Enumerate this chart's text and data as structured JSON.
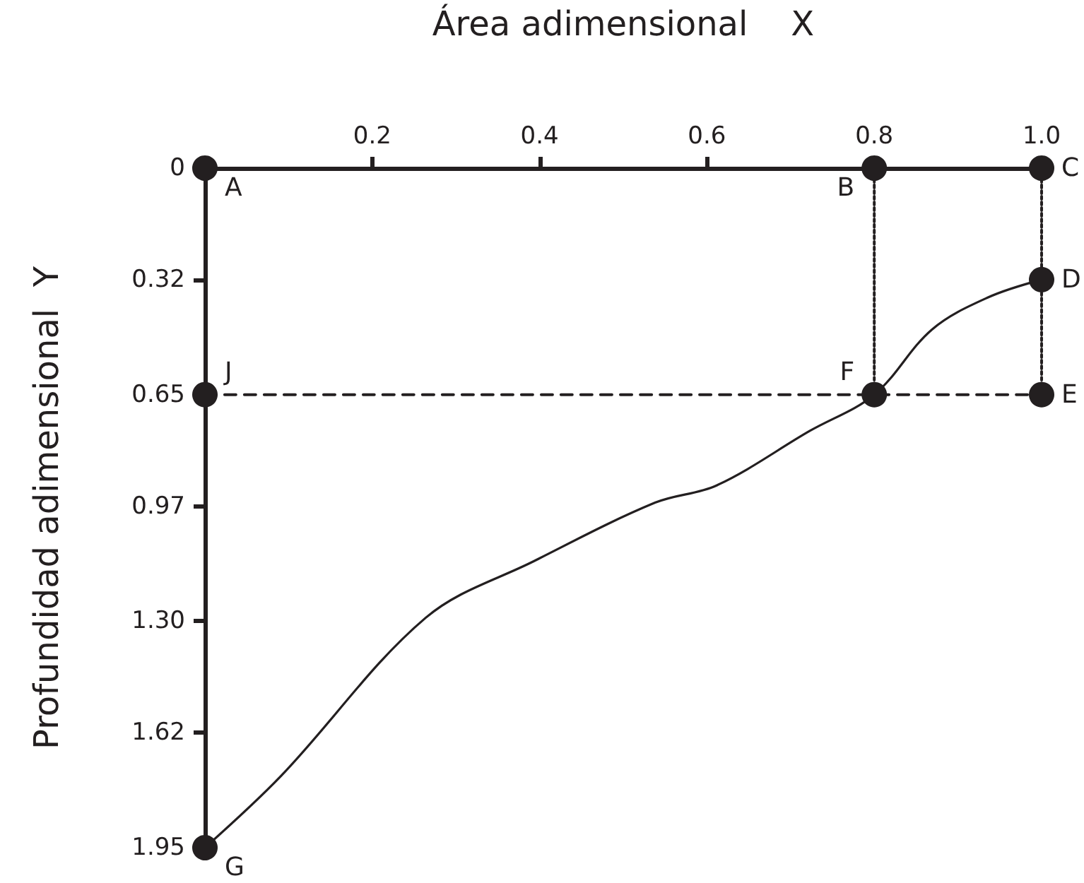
{
  "chart_data": {
    "type": "line",
    "xlabel": "Área adimensional    X",
    "ylabel": "Profundidad adimensional  Y",
    "xlim": [
      0,
      1
    ],
    "xticks": [
      0.2,
      0.4,
      0.6,
      0.8,
      {
        "value": 1,
        "label": "1.0"
      }
    ],
    "ylim": [
      1.95,
      0
    ],
    "yticks": [
      0,
      0.32,
      0.65,
      0.97,
      {
        "value": 1.3,
        "label": "1.30"
      },
      1.62,
      1.95
    ],
    "grid": false,
    "series": [
      {
        "x": [
          0,
          0.091,
          0.264,
          0.393,
          0.538,
          0.612,
          0.723,
          0.8,
          0.869,
          0.936,
          1
        ],
        "values": [
          1.95,
          1.744,
          1.29,
          1.128,
          0.96,
          0.91,
          0.754,
          0.65,
          0.463,
          0.371,
          0.32
        ],
        "color": "#231f20",
        "line_style": "solid",
        "marker": "none"
      },
      {
        "x": [
          0.8,
          0.8
        ],
        "values": [
          0,
          0.65
        ],
        "color": "#231f20",
        "line_style": "dotted",
        "marker": "none"
      },
      {
        "x": [
          1,
          1
        ],
        "values": [
          0,
          0.65
        ],
        "color": "#231f20",
        "line_style": "dotted",
        "marker": "none"
      },
      {
        "x": [
          0,
          1
        ],
        "values": [
          0.65,
          0.65
        ],
        "color": "#231f20",
        "line_style": "dashed",
        "marker": "none"
      },
      {
        "type": "scatter",
        "x": [
          0,
          0.8,
          1,
          1,
          1,
          0.8,
          0,
          0
        ],
        "values": [
          0,
          0,
          0,
          0.32,
          0.65,
          0.65,
          1.95,
          0.65
        ],
        "color": "#231f20",
        "marker": "circle"
      }
    ],
    "annotations": [
      {
        "text": "A",
        "x": 0,
        "y": 0
      },
      {
        "text": "B",
        "x": 0.8,
        "y": 0
      },
      {
        "text": "C",
        "x": 1,
        "y": 0
      },
      {
        "text": "D",
        "x": 1,
        "y": 0.32
      },
      {
        "text": "E",
        "x": 1,
        "y": 0.65
      },
      {
        "text": "F",
        "x": 0.8,
        "y": 0.65
      },
      {
        "text": "G",
        "x": 0,
        "y": 1.95
      },
      {
        "text": "J",
        "x": 0,
        "y": 0.65
      }
    ]
  }
}
